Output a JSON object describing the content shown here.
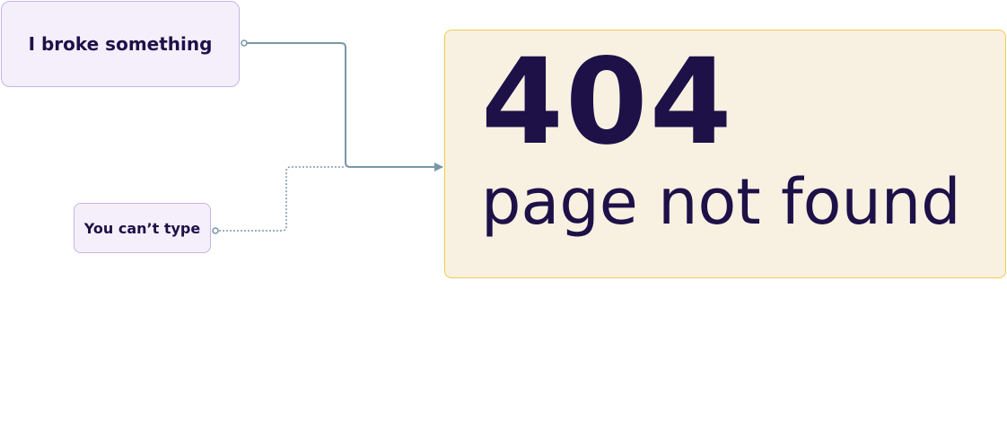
{
  "nodes": {
    "broke": {
      "label": "I broke something"
    },
    "type": {
      "label": "You can’t type"
    },
    "error": {
      "code": "404",
      "message": "page not found"
    }
  },
  "colors": {
    "ink": "#1d1148",
    "small_node_fill": "#f5effb",
    "small_node_border": "#c5b3e6",
    "error_fill": "#f8f1e2",
    "error_border": "#f0cc4a",
    "connector": "#7a96a8"
  },
  "edges": [
    {
      "from": "broke",
      "to": "error",
      "style": "solid"
    },
    {
      "from": "type",
      "to": "error",
      "style": "dotted"
    }
  ]
}
